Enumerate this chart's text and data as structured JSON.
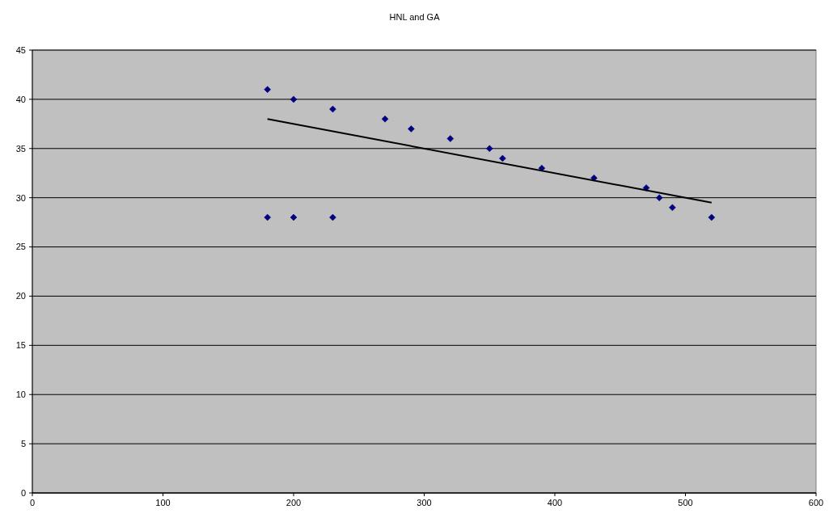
{
  "chart_data": {
    "type": "scatter",
    "title": "HNL and GA",
    "marker": "diamond",
    "grid": "y",
    "xlim": [
      0,
      600
    ],
    "xticks": [
      0,
      100,
      200,
      300,
      400,
      500,
      600
    ],
    "ylim": [
      0,
      45
    ],
    "yticks": [
      0,
      5,
      10,
      15,
      20,
      25,
      30,
      35,
      40,
      45
    ],
    "series": [
      {
        "color": "#000080",
        "x": [
          180,
          200,
          230,
          270,
          290,
          320,
          350,
          360,
          390,
          430,
          470,
          480,
          490,
          520,
          180,
          200,
          230
        ],
        "values": [
          41,
          40,
          39,
          38,
          37,
          36,
          35,
          34,
          33,
          32,
          31,
          30,
          29,
          28,
          28,
          28,
          28
        ]
      },
      {
        "type": "line",
        "color": "#000000",
        "marker": "none",
        "line_style": "solid",
        "x": [
          180,
          520
        ],
        "values": [
          38,
          29.5
        ]
      }
    ]
  }
}
